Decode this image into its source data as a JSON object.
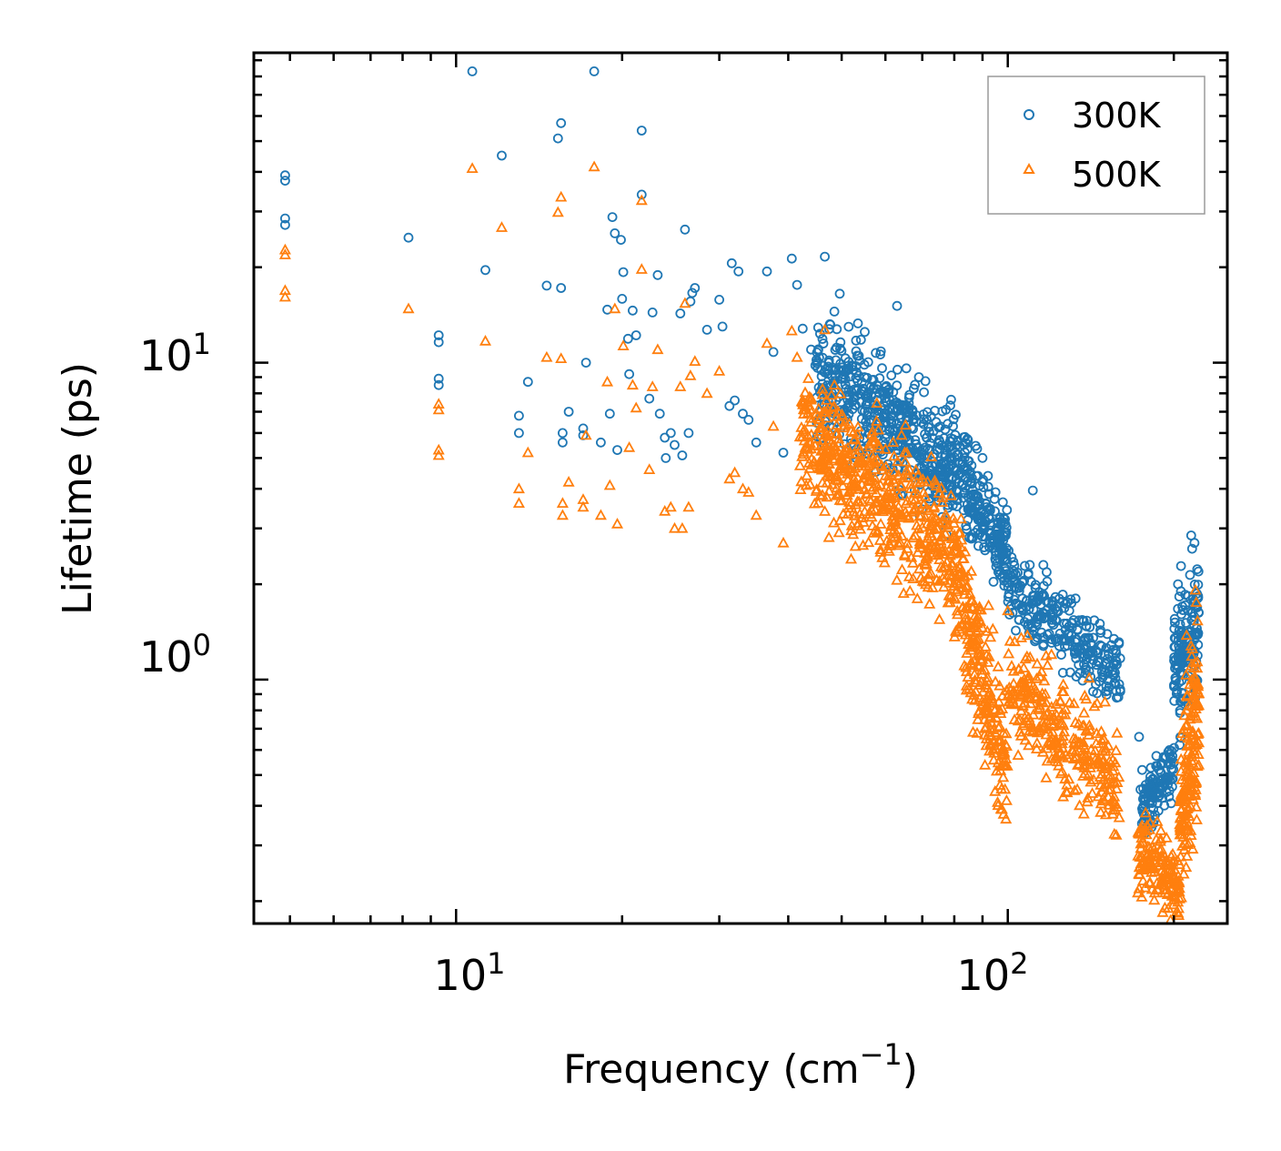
{
  "chart_data": {
    "type": "scatter",
    "title": "",
    "xlabel": "Frequency (cm",
    "xlabel_sup": "−1",
    "xlabel_close": ")",
    "ylabel": "Lifetime (ps)",
    "xscale": "log",
    "yscale": "log",
    "xlim": [
      4.3,
      250
    ],
    "ylim": [
      0.17,
      95
    ],
    "x_ticks": [
      {
        "value": 10,
        "base": "10",
        "exp": "1"
      },
      {
        "value": 100,
        "base": "10",
        "exp": "2"
      }
    ],
    "y_ticks": [
      {
        "value": 1,
        "base": "10",
        "exp": "0"
      },
      {
        "value": 10,
        "base": "10",
        "exp": "1"
      }
    ],
    "legend_position": "top-right",
    "series": [
      {
        "name": "300K",
        "marker": "circle",
        "color": "#1f77b4",
        "points": [
          [
            4.9,
            39
          ],
          [
            4.9,
            37.5
          ],
          [
            4.9,
            28.5
          ],
          [
            4.9,
            27.2
          ],
          [
            8.2,
            24.8
          ],
          [
            9.3,
            12.2
          ],
          [
            9.3,
            11.6
          ],
          [
            9.3,
            8.9
          ],
          [
            9.3,
            8.5
          ],
          [
            10.7,
            83
          ],
          [
            11.3,
            19.6
          ],
          [
            12.1,
            45
          ],
          [
            13.0,
            6.8
          ],
          [
            13.0,
            6.0
          ],
          [
            13.5,
            8.7
          ],
          [
            14.6,
            17.5
          ],
          [
            15.3,
            51
          ],
          [
            15.5,
            57
          ],
          [
            15.5,
            17.2
          ],
          [
            15.6,
            6.0
          ],
          [
            15.6,
            5.6
          ],
          [
            16.0,
            7.0
          ],
          [
            17.0,
            6.2
          ],
          [
            17.0,
            5.9
          ],
          [
            17.2,
            10.0
          ],
          [
            17.8,
            83
          ],
          [
            18.3,
            5.6
          ],
          [
            18.8,
            14.7
          ],
          [
            19.0,
            6.9
          ],
          [
            19.2,
            28.8
          ],
          [
            19.4,
            25.6
          ],
          [
            19.6,
            5.3
          ],
          [
            19.9,
            24.4
          ],
          [
            20.0,
            15.9
          ],
          [
            20.1,
            19.3
          ],
          [
            20.5,
            11.9
          ],
          [
            20.6,
            9.2
          ],
          [
            20.9,
            14.6
          ],
          [
            21.2,
            12.2
          ],
          [
            21.7,
            54
          ],
          [
            21.7,
            33.9
          ],
          [
            22.4,
            7.7
          ],
          [
            22.7,
            14.4
          ],
          [
            23.2,
            18.9
          ],
          [
            23.4,
            6.9
          ],
          [
            23.9,
            5.8
          ],
          [
            24.0,
            5.0
          ],
          [
            24.5,
            6.0
          ],
          [
            24.9,
            5.5
          ],
          [
            25.5,
            14.3
          ],
          [
            25.7,
            5.1
          ],
          [
            26.0,
            26.3
          ],
          [
            26.4,
            6.0
          ],
          [
            26.6,
            15.6
          ],
          [
            26.8,
            16.6
          ],
          [
            27.1,
            17.2
          ],
          [
            28.5,
            12.7
          ],
          [
            30.0,
            15.8
          ],
          [
            30.4,
            13.0
          ],
          [
            31.3,
            7.3
          ],
          [
            31.6,
            20.6
          ],
          [
            32.0,
            7.6
          ],
          [
            32.5,
            19.4
          ],
          [
            33.1,
            6.9
          ],
          [
            33.9,
            6.6
          ],
          [
            35.0,
            5.6
          ],
          [
            36.6,
            19.4
          ],
          [
            37.6,
            10.8
          ],
          [
            39.2,
            5.2
          ],
          [
            40.6,
            21.3
          ],
          [
            41.5,
            17.6
          ],
          [
            42.5,
            12.8
          ],
          [
            44.0,
            11.0
          ],
          [
            44.8,
            9.8
          ],
          [
            46.6,
            21.6
          ],
          [
            48.5,
            14.5
          ],
          [
            49.6,
            16.5
          ],
          [
            51.5,
            9.6
          ],
          [
            53.5,
            13.3
          ],
          [
            55.0,
            9.0
          ],
          [
            60.0,
            8.0
          ],
          [
            63.0,
            15.1
          ],
          [
            65.5,
            9.6
          ],
          [
            69.0,
            9.0
          ],
          [
            95.0,
            3.9
          ],
          [
            111.0,
            3.95
          ],
          [
            100.0,
            2.1
          ],
          [
            116.0,
            2.3
          ],
          [
            124.0,
            1.8
          ],
          [
            157.0,
            1.15
          ],
          [
            173.0,
            0.66
          ],
          [
            174.0,
            0.45
          ],
          [
            188.0,
            0.52
          ],
          [
            206.0,
            1.9
          ],
          [
            215.0,
            2.85
          ],
          [
            218.0,
            2.7
          ]
        ],
        "dense_clouds": [
          {
            "x_range": [
              45,
              80
            ],
            "log_y_center": [
              0.96,
              0.67
            ],
            "spread": 0.18,
            "count": 520
          },
          {
            "x_range": [
              80,
              100
            ],
            "log_y_center": [
              0.67,
              0.4
            ],
            "spread": 0.14,
            "count": 230
          },
          {
            "x_range": [
              100,
              160
            ],
            "log_y_center": [
              0.3,
              0.02
            ],
            "spread": 0.12,
            "count": 280
          },
          {
            "x_range": [
              175,
              200
            ],
            "log_y_center": [
              -0.4,
              -0.28
            ],
            "spread": 0.1,
            "count": 120
          },
          {
            "x_range": [
              200,
              222
            ],
            "log_y_center": [
              0.02,
              0.18
            ],
            "spread": 0.2,
            "count": 160
          }
        ]
      },
      {
        "name": "500K",
        "marker": "triangle",
        "color": "#ff7f0e",
        "points": [
          [
            4.9,
            22.7
          ],
          [
            4.9,
            21.9
          ],
          [
            4.9,
            16.9
          ],
          [
            4.9,
            16.1
          ],
          [
            8.2,
            14.8
          ],
          [
            9.3,
            7.4
          ],
          [
            9.3,
            7.1
          ],
          [
            9.3,
            5.3
          ],
          [
            9.3,
            5.1
          ],
          [
            10.7,
            41
          ],
          [
            11.3,
            11.7
          ],
          [
            12.1,
            26.7
          ],
          [
            13.0,
            4.0
          ],
          [
            13.0,
            3.6
          ],
          [
            13.5,
            5.2
          ],
          [
            14.6,
            10.4
          ],
          [
            15.3,
            29.8
          ],
          [
            15.5,
            33.3
          ],
          [
            15.5,
            10.3
          ],
          [
            15.6,
            3.6
          ],
          [
            15.6,
            3.3
          ],
          [
            16.0,
            4.2
          ],
          [
            17.0,
            3.7
          ],
          [
            17.0,
            3.5
          ],
          [
            17.2,
            5.9
          ],
          [
            17.8,
            41.5
          ],
          [
            18.3,
            3.3
          ],
          [
            18.8,
            8.7
          ],
          [
            19.0,
            4.1
          ],
          [
            19.4,
            14.8
          ],
          [
            19.6,
            3.1
          ],
          [
            20.1,
            11.3
          ],
          [
            20.6,
            5.4
          ],
          [
            20.9,
            8.5
          ],
          [
            21.2,
            7.2
          ],
          [
            21.7,
            32.5
          ],
          [
            21.7,
            19.7
          ],
          [
            22.4,
            4.6
          ],
          [
            22.7,
            8.4
          ],
          [
            23.2,
            11.0
          ],
          [
            23.9,
            3.4
          ],
          [
            24.5,
            3.5
          ],
          [
            24.9,
            3.0
          ],
          [
            25.5,
            8.4
          ],
          [
            25.7,
            3.0
          ],
          [
            26.0,
            15.4
          ],
          [
            26.4,
            3.5
          ],
          [
            26.6,
            9.1
          ],
          [
            27.1,
            10.1
          ],
          [
            28.5,
            8.0
          ],
          [
            30.0,
            9.4
          ],
          [
            31.3,
            4.3
          ],
          [
            32.0,
            4.5
          ],
          [
            33.1,
            4.0
          ],
          [
            33.9,
            3.9
          ],
          [
            35.0,
            3.3
          ],
          [
            36.6,
            11.5
          ],
          [
            37.6,
            6.3
          ],
          [
            39.2,
            2.7
          ],
          [
            40.6,
            12.6
          ],
          [
            41.5,
            10.4
          ],
          [
            42.5,
            7.5
          ],
          [
            44.0,
            6.5
          ],
          [
            46.6,
            12.7
          ],
          [
            48.5,
            8.5
          ],
          [
            52.0,
            2.4
          ],
          [
            100.0,
            1.65
          ],
          [
            120.0,
            1.2
          ],
          [
            150.0,
            0.85
          ]
        ],
        "dense_clouds": [
          {
            "x_range": [
              42,
              80
            ],
            "log_y_center": [
              0.78,
              0.4
            ],
            "spread": 0.2,
            "count": 560
          },
          {
            "x_range": [
              80,
              100
            ],
            "log_y_center": [
              0.35,
              -0.3
            ],
            "spread": 0.22,
            "count": 260
          },
          {
            "x_range": [
              100,
              160
            ],
            "log_y_center": [
              0.0,
              -0.35
            ],
            "spread": 0.18,
            "count": 300
          },
          {
            "x_range": [
              172,
              205
            ],
            "log_y_center": [
              -0.55,
              -0.65
            ],
            "spread": 0.12,
            "count": 160
          },
          {
            "x_range": [
              205,
              222
            ],
            "log_y_center": [
              -0.45,
              -0.05
            ],
            "spread": 0.3,
            "count": 180
          }
        ]
      }
    ]
  }
}
